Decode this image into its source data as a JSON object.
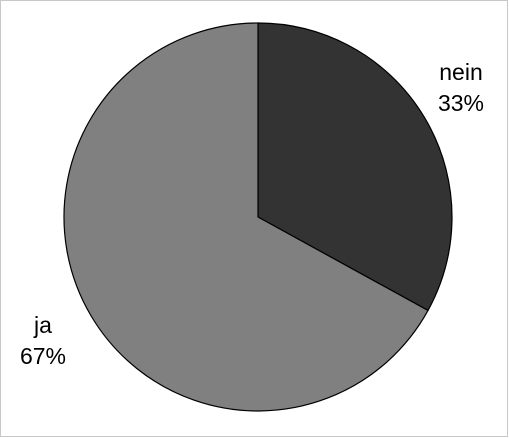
{
  "chart_data": {
    "type": "pie",
    "title": "",
    "categories": [
      "nein",
      "ja"
    ],
    "values": [
      33,
      67
    ],
    "value_format": "percent",
    "start_angle_deg": 0,
    "direction": "clockwise",
    "legend": "none",
    "slices": [
      {
        "label": "nein",
        "value": 33,
        "value_label": "33%",
        "color": "#333333"
      },
      {
        "label": "ja",
        "value": 67,
        "value_label": "67%",
        "color": "#808080"
      }
    ],
    "outline_color": "#000000"
  }
}
